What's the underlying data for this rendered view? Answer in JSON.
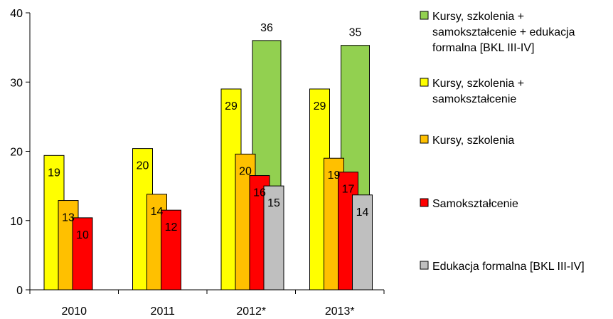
{
  "chart_data": {
    "type": "bar",
    "categories": [
      "2010",
      "2011",
      "2012*",
      "2013*"
    ],
    "ylim": [
      0,
      40
    ],
    "yticks": [
      "0",
      "10",
      "20",
      "30",
      "40"
    ],
    "grid": false,
    "legend_position": "right",
    "series": [
      {
        "key": "kursy_szkolenia_samoksztalcenie",
        "name": "Kursy, szkolenia + samokształcenie",
        "legend_lines": [
          "Kursy, szkolenia +",
          "samokształcenie"
        ],
        "color": "#FFFF00",
        "values": [
          19.4,
          20.4,
          29,
          29
        ],
        "labels": [
          "19",
          "20",
          "29",
          "29"
        ]
      },
      {
        "key": "kursy_szkolenia",
        "name": "Kursy, szkolenia",
        "legend_lines": [
          "Kursy, szkolenia"
        ],
        "color": "#FFC000",
        "values": [
          12.9,
          13.8,
          19.6,
          19
        ],
        "labels": [
          "13",
          "14",
          "20",
          "19"
        ]
      },
      {
        "key": "samoksztalcenie",
        "name": "Samokształcenie",
        "legend_lines": [
          "Samokształcenie"
        ],
        "color": "#FF0000",
        "values": [
          10.4,
          11.5,
          16.5,
          17
        ],
        "labels": [
          "10",
          "12",
          "16",
          "17"
        ]
      },
      {
        "key": "edukacja_formalna",
        "name": "Edukacja formalna [BKL III-IV]",
        "legend_lines": [
          "Edukacja formalna [BKL III-IV]"
        ],
        "color": "#BFBFBF",
        "values": [
          null,
          null,
          15,
          13.7
        ],
        "labels": [
          "",
          "",
          "15",
          "14"
        ]
      },
      {
        "key": "wszystko",
        "name": "Kursy, szkolenia + samokształcenie + edukacja formalna [BKL III-IV]",
        "legend_lines": [
          "Kursy, szkolenia +",
          "samokształcenie + edukacja",
          "formalna  [BKL III-IV]"
        ],
        "color": "#92D050",
        "values": [
          null,
          null,
          36,
          35.3
        ],
        "labels": [
          "",
          "",
          "36",
          "35"
        ]
      }
    ],
    "legend_order": [
      "wszystko",
      "kursy_szkolenia_samoksztalcenie",
      "kursy_szkolenia",
      "samoksztalcenie",
      "edukacja_formalna"
    ]
  }
}
